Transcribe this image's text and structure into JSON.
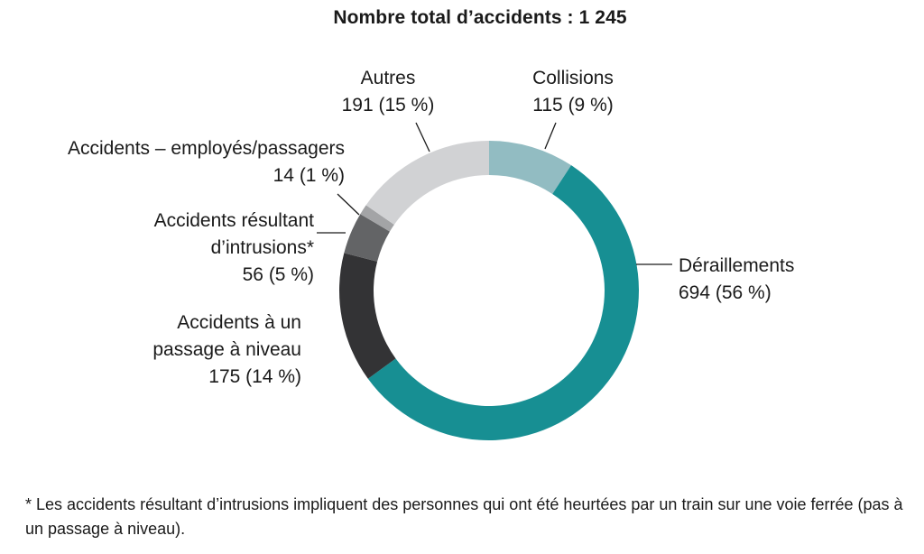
{
  "chart_data": {
    "type": "pie",
    "variant": "donut",
    "title": "Nombre total d’accidents : 1 245",
    "slices": [
      {
        "label_lines": [
          "Collisions"
        ],
        "value_text": "115 (9 %)",
        "value": 115,
        "percent": 9,
        "color": "#92bcc2"
      },
      {
        "label_lines": [
          "Déraillements"
        ],
        "value_text": "694 (56 %)",
        "value": 694,
        "percent": 56,
        "color": "#178f93"
      },
      {
        "label_lines": [
          "Accidents à un",
          "passage à niveau"
        ],
        "value_text": "175 (14 %)",
        "value": 175,
        "percent": 14,
        "color": "#333335"
      },
      {
        "label_lines": [
          "Accidents résultant",
          "d’intrusions*"
        ],
        "value_text": "56 (5 %)",
        "value": 56,
        "percent": 5,
        "color": "#636466"
      },
      {
        "label_lines": [
          "Accidents – employés/passagers"
        ],
        "value_text": "14 (1 %)",
        "value": 14,
        "percent": 1,
        "color": "#a3a4a6"
      },
      {
        "label_lines": [
          "Autres"
        ],
        "value_text": "191 (15 %)",
        "value": 191,
        "percent": 15,
        "color": "#d1d2d4"
      }
    ],
    "legend": "none"
  },
  "footnote": "* Les accidents résultant d’intrusions impliquent des personnes qui ont été heurtées par un train sur une voie ferrée (pas à un passage à niveau)."
}
